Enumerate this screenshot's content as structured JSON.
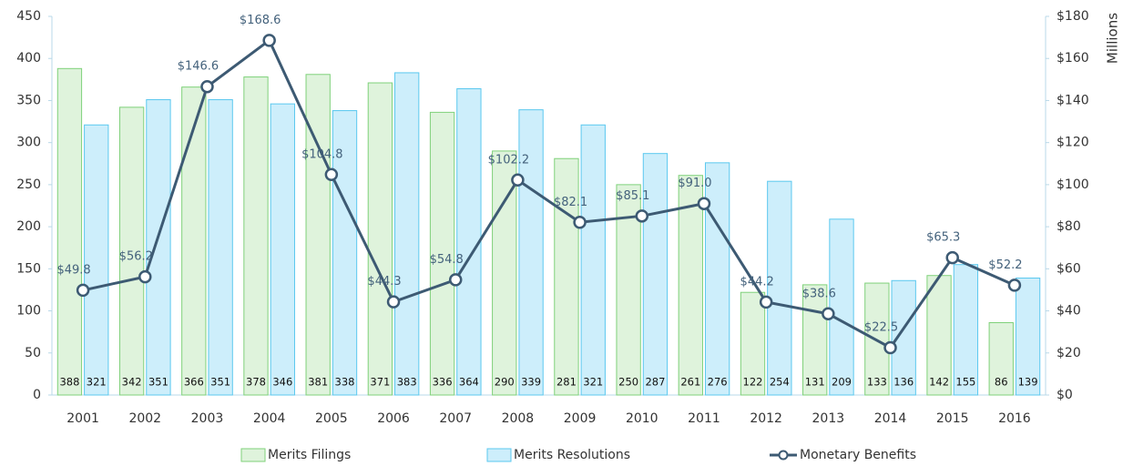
{
  "chart_data": {
    "type": "bar",
    "categories": [
      "2001",
      "2002",
      "2003",
      "2004",
      "2005",
      "2006",
      "2007",
      "2008",
      "2009",
      "2010",
      "2011",
      "2012",
      "2013",
      "2014",
      "2015",
      "2016"
    ],
    "series": [
      {
        "name": "Merits Filings",
        "type": "bar",
        "color": "#dff3dc",
        "stroke": "#7fd17a",
        "values": [
          388,
          342,
          366,
          378,
          381,
          371,
          336,
          290,
          281,
          250,
          261,
          122,
          131,
          133,
          142,
          86
        ]
      },
      {
        "name": "Merits Resolutions",
        "type": "bar",
        "color": "#cdeefb",
        "stroke": "#5bc8ef",
        "values": [
          321,
          351,
          351,
          346,
          338,
          383,
          364,
          339,
          321,
          287,
          276,
          254,
          209,
          136,
          155,
          139
        ]
      },
      {
        "name": "Monetary Benefits",
        "type": "line",
        "axis": "y2",
        "color": "#3d5a73",
        "values": [
          49.8,
          56.2,
          146.6,
          168.6,
          104.8,
          44.3,
          54.8,
          102.2,
          82.1,
          85.1,
          91.0,
          44.2,
          38.6,
          22.5,
          65.3,
          52.2
        ],
        "value_labels": [
          "$49.8",
          "$56.2",
          "$146.6",
          "$168.6",
          "$104.8",
          "$44.3",
          "$54.8",
          "$102.2",
          "$82.1",
          "$85.1",
          "$91.0",
          "$44.2",
          "$38.6",
          "$22.5",
          "$65.3",
          "$52.2"
        ]
      }
    ],
    "ylim": [
      0,
      450
    ],
    "yticks": [
      0,
      50,
      100,
      150,
      200,
      250,
      300,
      350,
      400,
      450
    ],
    "y2lim": [
      0,
      180
    ],
    "y2ticks": [
      {
        "value": 0,
        "label": "$0"
      },
      {
        "value": 20,
        "label": "$20"
      },
      {
        "value": 40,
        "label": "$40"
      },
      {
        "value": 60,
        "label": "$60"
      },
      {
        "value": 80,
        "label": "$80"
      },
      {
        "value": 100,
        "label": "$100"
      },
      {
        "value": 120,
        "label": "$120"
      },
      {
        "value": 140,
        "label": "$140"
      },
      {
        "value": 160,
        "label": "$160"
      },
      {
        "value": 180,
        "label": "$180"
      }
    ],
    "y2label": "Millions",
    "legend": "bottom"
  }
}
